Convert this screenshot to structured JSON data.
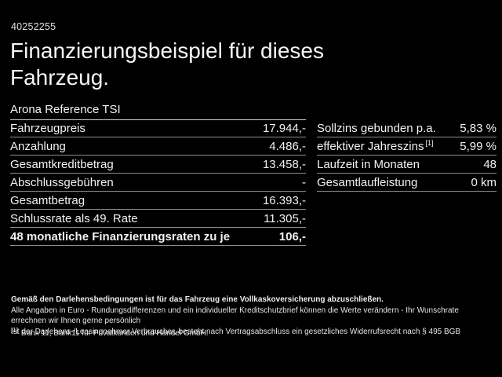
{
  "page": {
    "id_number": "40252255",
    "title": "Finanzierungsbeispiel für dieses Fahrzeug.",
    "subtitle": "Arona Reference TSI"
  },
  "left_table": {
    "rows": [
      {
        "label": "Fahrzeugpreis",
        "value": "17.944,-"
      },
      {
        "label": "Anzahlung",
        "value": "4.486,-"
      },
      {
        "label": "Gesamtkreditbetrag",
        "value": "13.458,-"
      },
      {
        "label": "Abschlussgebühren",
        "value": "-"
      },
      {
        "label": "Gesamtbetrag",
        "value": "16.393,-"
      },
      {
        "label": "Schlussrate als 49. Rate",
        "value": "11.305,-"
      },
      {
        "label": "48 monatliche Finanzierungsraten zu je",
        "value": "106,-"
      }
    ]
  },
  "right_table": {
    "rows": [
      {
        "label": "Sollzins gebunden p.a.",
        "value": "5,83 %"
      },
      {
        "label": "effektiver Jahreszins",
        "sup": "[1]",
        "value": "5,99 %"
      },
      {
        "label": "Laufzeit in Monaten",
        "value": "48"
      },
      {
        "label": "Gesamtlaufleistung",
        "value": "0 km"
      }
    ]
  },
  "footnotes": {
    "insurance_note": "Gemäß den Darlehensbedingungen ist für das Fahrzeug eine Vollkaskoversicherung abzuschließen.",
    "disclaimer_line1": "Alle Angaben in Euro - Rundungsdifferenzen und ein individueller Kreditschutzbrief können die Werte verändern - Ihr Wunschrate errechnen wir Ihnen gerne persönlich",
    "disclaimer_line2": "Ist der Darlehens-/Leasingnehmer Verbraucher, besteht nach Vertragsabschluss ein gesetzliches Widerrufsrecht nach § 495 BGB",
    "bank_marker": "[1]",
    "bank_note": "Bank 11, Bank11 für Privatkunden und Handel GmbH."
  },
  "colors": {
    "background": "#000000",
    "text": "#f2f2f2",
    "separator": "#8f8f8f",
    "header_separator": "#cfcfcf"
  }
}
